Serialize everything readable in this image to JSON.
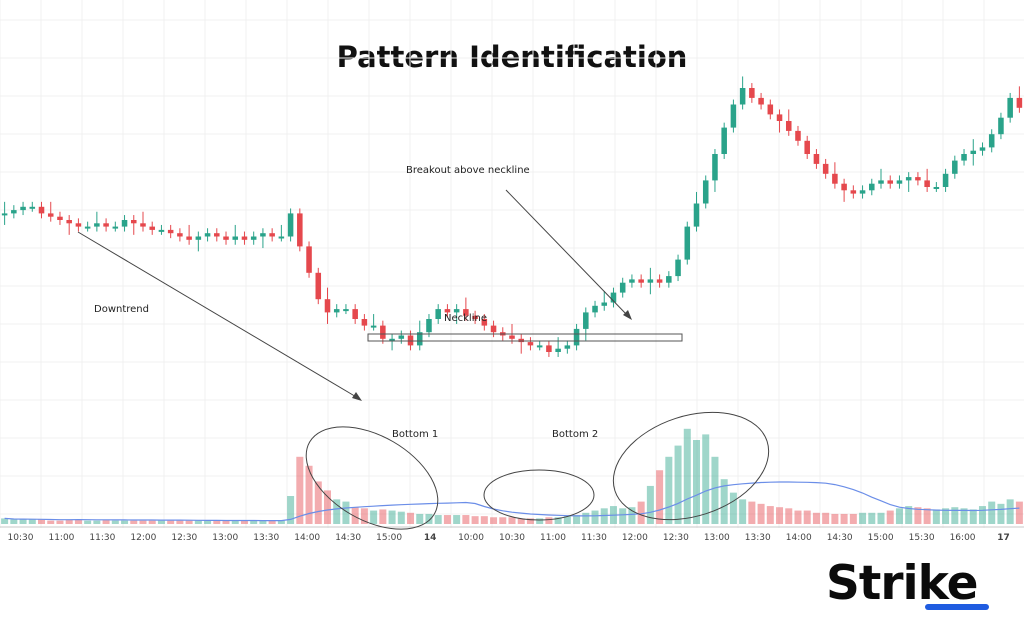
{
  "chart_data": {
    "type": "candlestick",
    "title": "Pattern Identification",
    "x_ticks": [
      "10:30",
      "11:00",
      "11:30",
      "12:00",
      "12:30",
      "13:00",
      "13:30",
      "14:00",
      "14:30",
      "15:00",
      "14",
      "10:00",
      "10:30",
      "11:00",
      "11:30",
      "12:00",
      "12:30",
      "13:00",
      "13:30",
      "14:00",
      "14:30",
      "15:00",
      "15:30",
      "16:00",
      "17"
    ],
    "annotations": {
      "downtrend": "Downtrend",
      "neckline": "Neckline",
      "bottom1": "Bottom 1",
      "bottom2": "Bottom 2",
      "breakout": "Breakout above neckline"
    },
    "y_range": [
      0,
      100
    ],
    "volume_range": [
      0,
      100
    ],
    "series": {
      "close": [
        62,
        63,
        64,
        64,
        62,
        61,
        60,
        59,
        58,
        58,
        59,
        58,
        58,
        60,
        59,
        58,
        57,
        57,
        56,
        55,
        54,
        55,
        56,
        55,
        54,
        55,
        54,
        55,
        56,
        55,
        55,
        62,
        52,
        44,
        36,
        32,
        33,
        33,
        30,
        28,
        28,
        24,
        24,
        25,
        22,
        26,
        30,
        33,
        32,
        33,
        31,
        30,
        28,
        26,
        25,
        24,
        23,
        22,
        22,
        20,
        21,
        22,
        27,
        32,
        34,
        35,
        38,
        41,
        42,
        41,
        42,
        41,
        43,
        48,
        58,
        65,
        72,
        80,
        88,
        95,
        100,
        97,
        95,
        92,
        90,
        87,
        84,
        80,
        77,
        74,
        71,
        69,
        68,
        69,
        71,
        72,
        71,
        72,
        73,
        72,
        70,
        70,
        74,
        78,
        80,
        81,
        82,
        86,
        91,
        97,
        94
      ],
      "volume": [
        5,
        4,
        4,
        4,
        4,
        3,
        3,
        4,
        4,
        3,
        3,
        4,
        3,
        3,
        3,
        3,
        3,
        3,
        3,
        3,
        3,
        3,
        3,
        3,
        3,
        3,
        3,
        3,
        3,
        3,
        3,
        25,
        60,
        52,
        38,
        30,
        22,
        20,
        15,
        14,
        12,
        13,
        12,
        11,
        10,
        9,
        9,
        8,
        8,
        8,
        8,
        7,
        7,
        6,
        6,
        6,
        5,
        5,
        5,
        6,
        6,
        7,
        8,
        10,
        12,
        14,
        16,
        14,
        15,
        20,
        34,
        48,
        60,
        70,
        85,
        75,
        80,
        60,
        40,
        28,
        22,
        20,
        18,
        16,
        15,
        14,
        12,
        12,
        10,
        10,
        9,
        9,
        9,
        10,
        10,
        10,
        12,
        14,
        16,
        15,
        14,
        13,
        14,
        15,
        14,
        13,
        16,
        20,
        18,
        22,
        20
      ]
    }
  }
}
